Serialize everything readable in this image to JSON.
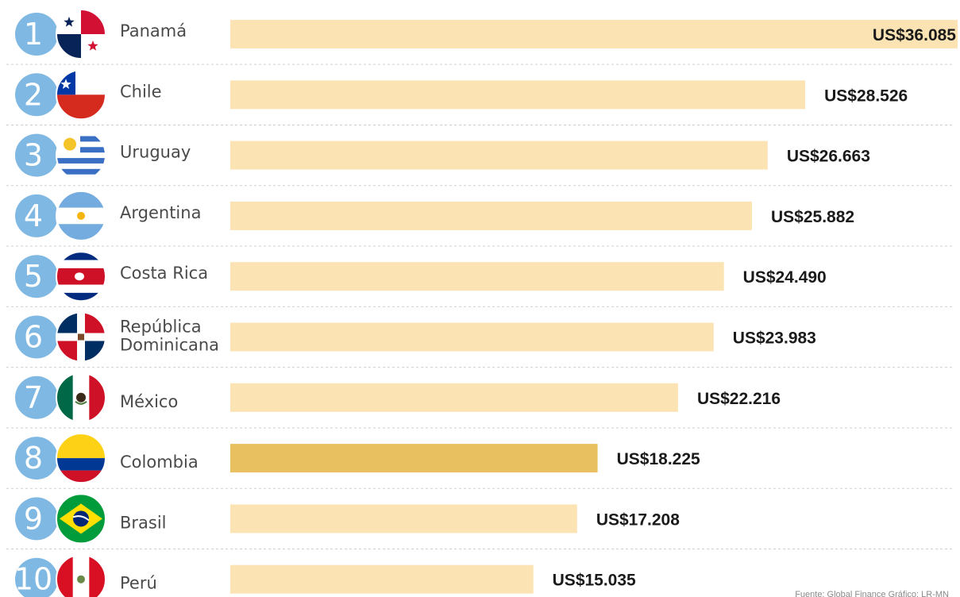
{
  "chart_data": {
    "type": "bar",
    "orientation": "horizontal",
    "categories": [
      "Panamá",
      "Chile",
      "Uruguay",
      "Argentina",
      "Costa Rica",
      "República Dominicana",
      "México",
      "Colombia",
      "Brasil",
      "Perú"
    ],
    "category_lines": [
      [
        "Panamá"
      ],
      [
        "Chile"
      ],
      [
        "Uruguay"
      ],
      [
        "Argentina"
      ],
      [
        "Costa Rica"
      ],
      [
        "República",
        "Dominicana"
      ],
      [
        "México"
      ],
      [
        "Colombia"
      ],
      [
        "Brasil"
      ],
      [
        "Perú"
      ]
    ],
    "ranks": [
      "1",
      "2",
      "3",
      "4",
      "5",
      "6",
      "7",
      "8",
      "9",
      "10"
    ],
    "values": [
      36085,
      28526,
      26663,
      25882,
      24490,
      23983,
      22216,
      18225,
      17208,
      15035
    ],
    "value_labels": [
      "US$36.085",
      "US$28.526",
      "US$26.663",
      "US$25.882",
      "US$24.490",
      "US$23.983",
      "US$22.216",
      "US$18.225",
      "US$17.208",
      "US$15.035"
    ],
    "flags": [
      "panama-flag-icon",
      "chile-flag-icon",
      "uruguay-flag-icon",
      "argentina-flag-icon",
      "costa-rica-flag-icon",
      "dominican-republic-flag-icon",
      "mexico-flag-icon",
      "colombia-flag-icon",
      "brazil-flag-icon",
      "peru-flag-icon"
    ],
    "highlight_index": 7,
    "xlim": [
      0,
      36085
    ],
    "grid": false,
    "legend": "none",
    "source_note": "Fuente: Global Finance   Gráfico: LR-MN"
  },
  "colors": {
    "bar": "#fce3b4",
    "bar_highlight": "#e8c060",
    "rank_circle": "#7fb8e2",
    "separator": "#cfcfcf",
    "country_text": "#4a4a4a",
    "value_text": "#1a1a1a"
  }
}
